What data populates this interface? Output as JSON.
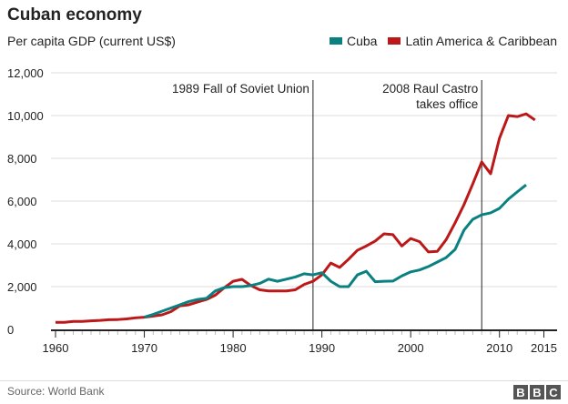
{
  "chart_data": {
    "type": "line",
    "title": "Cuban economy",
    "subtitle": "Per capita GDP (current US$)",
    "xlabel": "",
    "ylabel": "",
    "xlim": [
      1960,
      2015
    ],
    "ylim": [
      0,
      12000
    ],
    "grid": true,
    "legend": "top-right",
    "x_ticks": [
      "1960",
      "1970",
      "1980",
      "1990",
      "2000",
      "2010",
      "2015"
    ],
    "y_ticks": [
      "0",
      "2,000",
      "4,000",
      "6,000",
      "8,000",
      "10,000",
      "12,000"
    ],
    "annotations": [
      {
        "x": 1989,
        "label": "1989 Fall of Soviet Union"
      },
      {
        "x": 2008,
        "label": "2008 Raul Castro\ntakes office"
      }
    ],
    "series": [
      {
        "name": "Cuba",
        "color": "#0a8080",
        "start": 1970,
        "values": [
          570,
          700,
          850,
          1000,
          1150,
          1300,
          1400,
          1450,
          1800,
          1950,
          2000,
          2000,
          2050,
          2150,
          2350,
          2250,
          2350,
          2450,
          2600,
          2550,
          2650,
          2250,
          2000,
          2000,
          2550,
          2720,
          2230,
          2250,
          2260,
          2500,
          2690,
          2780,
          2940,
          3150,
          3360,
          3740,
          4640,
          5150,
          5360,
          5450,
          5660,
          6090,
          6430,
          6760
        ]
      },
      {
        "name": "Latin America & Caribbean",
        "color": "#bb1919",
        "start": 1960,
        "values": [
          330,
          330,
          370,
          370,
          400,
          420,
          450,
          460,
          490,
          540,
          570,
          620,
          680,
          830,
          1100,
          1150,
          1280,
          1400,
          1600,
          1950,
          2250,
          2340,
          2050,
          1850,
          1800,
          1800,
          1800,
          1850,
          2100,
          2250,
          2550,
          3100,
          2900,
          3280,
          3700,
          3900,
          4130,
          4470,
          4430,
          3900,
          4250,
          4100,
          3620,
          3650,
          4200,
          4980,
          5830,
          6810,
          7830,
          7280,
          8940,
          10000,
          9950,
          10080,
          9790
        ]
      }
    ]
  },
  "source": "Source: World Bank",
  "logo": [
    "B",
    "B",
    "C"
  ]
}
